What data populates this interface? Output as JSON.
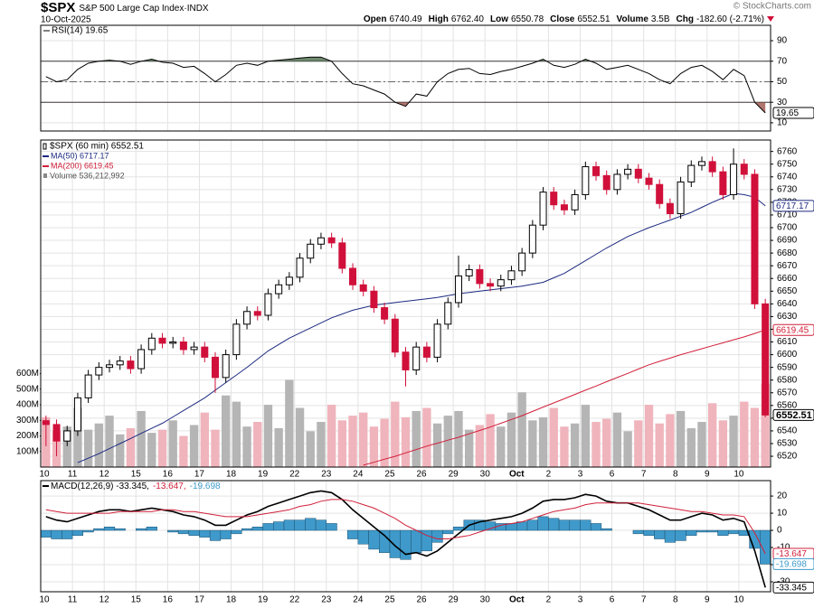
{
  "header": {
    "symbol": "$SPX",
    "name": "S&P 500 Large Cap Index·INDX",
    "date": "10-Oct-2025",
    "watermark": "© StockCharts.com",
    "stats": [
      {
        "label": "Open",
        "value": "6740.49"
      },
      {
        "label": "High",
        "value": "6762.40"
      },
      {
        "label": "Low",
        "value": "6550.78"
      },
      {
        "label": "Close",
        "value": "6552.51"
      },
      {
        "label": "Volume",
        "value": "3.5B"
      },
      {
        "label": "Chg",
        "value": "-182.60 (-2.71%)"
      }
    ]
  },
  "chart_data": [
    {
      "type": "line",
      "title": "RSI(14) 19.65",
      "color": "#000000",
      "values": [
        55,
        50,
        52,
        62,
        68,
        70,
        71,
        70,
        67,
        70,
        72,
        69,
        68,
        64,
        65,
        58,
        50,
        57,
        66,
        68,
        66,
        70,
        71,
        72,
        73,
        74,
        74,
        70,
        58,
        48,
        46,
        42,
        38,
        30,
        26,
        38,
        36,
        50,
        58,
        62,
        63,
        58,
        57,
        60,
        62,
        65,
        68,
        72,
        66,
        64,
        67,
        72,
        68,
        62,
        64,
        66,
        62,
        58,
        52,
        48,
        58,
        64,
        66,
        60,
        52,
        62,
        56,
        30,
        19.65
      ],
      "ylim": [
        2,
        105
      ],
      "yticks": [
        10,
        30,
        50,
        70,
        90
      ],
      "grid": true,
      "levels": [
        {
          "value": 70,
          "style": "solid"
        },
        {
          "value": 50,
          "style": "dashdot"
        },
        {
          "value": 30,
          "style": "solid"
        }
      ],
      "fills": [
        {
          "level": 0,
          "side": "above",
          "color": "#5f7d5f"
        },
        {
          "level": 2,
          "side": "below",
          "color": "#a9665f"
        }
      ],
      "tags": [
        {
          "value": 19.65,
          "label": "19.65",
          "color": "#000000"
        }
      ]
    },
    {
      "type": "candlestick",
      "name": "$SPX (60 min) 6552.51",
      "up_color": "#000000",
      "down_color": "#d0103a",
      "grid": true,
      "categories": [
        "10",
        null,
        null,
        "11",
        null,
        null,
        "12",
        null,
        null,
        "15",
        null,
        null,
        "16",
        null,
        null,
        "17",
        null,
        null,
        "18",
        null,
        null,
        "19",
        null,
        null,
        "22",
        null,
        null,
        "23",
        null,
        null,
        "24",
        null,
        null,
        "25",
        null,
        null,
        "26",
        null,
        null,
        "29",
        null,
        null,
        "30",
        null,
        null,
        "Oct",
        null,
        null,
        "2",
        null,
        null,
        "3",
        null,
        null,
        "6",
        null,
        null,
        "7",
        null,
        null,
        "8",
        null,
        null,
        "9",
        null,
        null,
        "10",
        null,
        null
      ],
      "open": [
        6548,
        6545,
        6532,
        6540,
        6566,
        6584,
        6590,
        6592,
        6595,
        6589,
        6604,
        6613,
        6609,
        6610,
        6604,
        6606,
        6598,
        6582,
        6600,
        6624,
        6634,
        6631,
        6648,
        6655,
        6661,
        6676,
        6687,
        6692,
        6688,
        6668,
        6655,
        6650,
        6637,
        6628,
        6602,
        6588,
        6606,
        6598,
        6624,
        6641,
        6662,
        6667,
        6656,
        6654,
        6659,
        6666,
        6680,
        6702,
        6728,
        6718,
        6714,
        6726,
        6748,
        6741,
        6730,
        6742,
        6746,
        6739,
        6734,
        6719,
        6711,
        6736,
        6749,
        6752,
        6744,
        6726,
        6750,
        6742,
        6640
      ],
      "high": [
        6552,
        6549,
        6544,
        6570,
        6588,
        6594,
        6596,
        6599,
        6599,
        6608,
        6617,
        6617,
        6614,
        6614,
        6610,
        6610,
        6602,
        6604,
        6628,
        6638,
        6638,
        6652,
        6659,
        6665,
        6680,
        6691,
        6696,
        6696,
        6692,
        6672,
        6659,
        6654,
        6641,
        6632,
        6606,
        6610,
        6610,
        6628,
        6645,
        6678,
        6671,
        6671,
        6660,
        6663,
        6670,
        6684,
        6706,
        6732,
        6732,
        6722,
        6730,
        6752,
        6752,
        6745,
        6746,
        6750,
        6750,
        6743,
        6738,
        6723,
        6740,
        6753,
        6756,
        6756,
        6748,
        6762.4,
        6754,
        6746,
        6644
      ],
      "low": [
        6528,
        6520,
        6528,
        6536,
        6562,
        6580,
        6586,
        6588,
        6585,
        6585,
        6600,
        6605,
        6605,
        6600,
        6600,
        6594,
        6570,
        6578,
        6596,
        6620,
        6627,
        6627,
        6644,
        6651,
        6657,
        6672,
        6683,
        6684,
        6664,
        6651,
        6646,
        6633,
        6624,
        6598,
        6575,
        6584,
        6594,
        6594,
        6620,
        6637,
        6658,
        6652,
        6650,
        6650,
        6655,
        6662,
        6676,
        6698,
        6714,
        6710,
        6710,
        6722,
        6737,
        6726,
        6726,
        6738,
        6735,
        6730,
        6715,
        6707,
        6707,
        6732,
        6745,
        6740,
        6722,
        6722,
        6738,
        6636,
        6550.78
      ],
      "close": [
        6545,
        6532,
        6540,
        6566,
        6584,
        6590,
        6592,
        6595,
        6589,
        6604,
        6613,
        6609,
        6610,
        6604,
        6606,
        6598,
        6582,
        6600,
        6624,
        6634,
        6631,
        6648,
        6655,
        6661,
        6676,
        6687,
        6692,
        6688,
        6668,
        6655,
        6650,
        6637,
        6628,
        6602,
        6588,
        6606,
        6598,
        6624,
        6641,
        6662,
        6667,
        6656,
        6654,
        6659,
        6666,
        6680,
        6702,
        6728,
        6718,
        6714,
        6726,
        6748,
        6741,
        6730,
        6742,
        6746,
        6739,
        6734,
        6719,
        6711,
        6736,
        6749,
        6752,
        6744,
        6726,
        6750,
        6742,
        6640,
        6552.51
      ],
      "series": [
        {
          "name": "MA(50) 6717.17",
          "color": "#1c2a80",
          "values": [
            null,
            null,
            null,
            6515,
            6518.5,
            6522,
            6526,
            6530,
            6534,
            6538,
            6542,
            6546,
            6551,
            6556,
            6561,
            6566,
            6572,
            6578,
            6584,
            6590,
            6596.5,
            6603,
            6608,
            6613,
            6617,
            6621,
            6625,
            6629,
            6632,
            6635,
            6637,
            6639,
            6640,
            6641,
            6642,
            6643,
            6644,
            6645,
            6646.5,
            6648,
            6649,
            6650,
            6651,
            6652,
            6653,
            6654,
            6655.5,
            6657,
            6660.5,
            6664,
            6669,
            6674,
            6679,
            6684,
            6688.5,
            6693,
            6696.5,
            6700,
            6703,
            6706,
            6709,
            6712,
            6716,
            6720,
            6723.5,
            6727,
            6726,
            6724,
            6717.17
          ]
        },
        {
          "name": "MA(200) 6619.45",
          "color": "#d0203a",
          "values": [
            null,
            null,
            null,
            null,
            null,
            null,
            null,
            null,
            null,
            null,
            null,
            null,
            null,
            null,
            null,
            null,
            null,
            null,
            null,
            null,
            null,
            null,
            null,
            null,
            null,
            null,
            null,
            null,
            null,
            null,
            6513,
            6515.3,
            6517.7,
            6520,
            6522.7,
            6525.3,
            6528,
            6530.3,
            6532.7,
            6535,
            6537.7,
            6540.3,
            6543,
            6546,
            6549,
            6552,
            6555.3,
            6558.7,
            6562,
            6565.3,
            6568.7,
            6572,
            6575.3,
            6578.7,
            6582,
            6585.3,
            6588.7,
            6592,
            6594.7,
            6597.3,
            6600,
            6602.3,
            6604.7,
            6607,
            6609.3,
            6611.7,
            6614,
            6616.7,
            6619.45
          ]
        }
      ],
      "volume": {
        "name": "Volume 536,212,992",
        "up_color": "#b5b5b5",
        "down_color": "#f0b4bc",
        "values": [
          320000000,
          230000000,
          260000000,
          380000000,
          240000000,
          280000000,
          330000000,
          210000000,
          250000000,
          360000000,
          220000000,
          240000000,
          300000000,
          200000000,
          270000000,
          350000000,
          240000000,
          460000000,
          420000000,
          260000000,
          290000000,
          400000000,
          250000000,
          560000000,
          380000000,
          230000000,
          290000000,
          400000000,
          300000000,
          330000000,
          350000000,
          260000000,
          310000000,
          420000000,
          320000000,
          360000000,
          380000000,
          280000000,
          330000000,
          360000000,
          240000000,
          270000000,
          340000000,
          260000000,
          350000000,
          480000000,
          300000000,
          320000000,
          380000000,
          260000000,
          280000000,
          400000000,
          290000000,
          310000000,
          350000000,
          230000000,
          300000000,
          400000000,
          280000000,
          340000000,
          360000000,
          250000000,
          290000000,
          410000000,
          300000000,
          330000000,
          420000000,
          380000000,
          536212992
        ],
        "ylim": [
          0,
          2100000000
        ],
        "yticks": [
          {
            "value": 100000000,
            "label": "100M"
          },
          {
            "value": 200000000,
            "label": "200M"
          },
          {
            "value": 300000000,
            "label": "300M"
          },
          {
            "value": 400000000,
            "label": "400M"
          },
          {
            "value": 500000000,
            "label": "500M"
          },
          {
            "value": 600000000,
            "label": "600M"
          }
        ]
      },
      "ylim": [
        6511.5,
        6769
      ],
      "yticks": [
        6520,
        6530,
        6540,
        6550,
        6560,
        6570,
        6580,
        6590,
        6600,
        6610,
        6620,
        6630,
        6640,
        6650,
        6660,
        6670,
        6680,
        6690,
        6700,
        6710,
        6720,
        6730,
        6740,
        6750,
        6760
      ],
      "tags": [
        {
          "value": 6717.17,
          "label": "6717.17",
          "color": "#1c2a80"
        },
        {
          "value": 6619.45,
          "label": "6619.45",
          "color": "#d0203a"
        },
        {
          "value": 6552.51,
          "label": "6552.51",
          "color": "#000000"
        }
      ]
    },
    {
      "type": "macd",
      "grid": true,
      "categories": [
        "10",
        null,
        null,
        "11",
        null,
        null,
        "12",
        null,
        null,
        "15",
        null,
        null,
        "16",
        null,
        null,
        "17",
        null,
        null,
        "18",
        null,
        null,
        "19",
        null,
        null,
        "22",
        null,
        null,
        "23",
        null,
        null,
        "24",
        null,
        null,
        "25",
        null,
        null,
        "26",
        null,
        null,
        "29",
        null,
        null,
        "30",
        null,
        null,
        "Oct",
        null,
        null,
        "2",
        null,
        null,
        "3",
        null,
        null,
        "6",
        null,
        null,
        "7",
        null,
        null,
        "8",
        null,
        null,
        "9",
        null,
        null,
        "10",
        null,
        null
      ],
      "series": [
        {
          "name": "MACD(12,26,9) -33.345,",
          "color": "#000000",
          "kind": "line",
          "values": [
            8,
            6,
            5,
            7,
            9,
            11,
            12,
            12,
            11,
            12,
            13,
            12,
            11,
            9,
            8,
            6,
            3,
            3,
            6,
            9,
            11,
            14,
            16,
            18,
            20,
            22,
            23,
            22,
            18,
            12,
            7,
            2,
            -3,
            -9,
            -14,
            -13,
            -15,
            -12,
            -7,
            -2,
            3,
            5,
            6,
            7,
            8,
            10,
            13,
            17,
            18,
            18,
            19,
            21,
            20,
            17,
            16,
            16,
            14,
            12,
            9,
            6,
            6,
            8,
            10,
            9,
            6,
            7,
            5,
            -12,
            -33.345
          ]
        },
        {
          "name": "-13.647,",
          "color": "#d0203a",
          "kind": "line",
          "values": [
            12,
            11,
            10,
            10,
            10,
            10,
            10,
            11,
            11,
            11,
            11,
            12,
            12,
            11,
            11,
            10,
            9,
            8,
            8,
            8,
            9,
            10,
            11,
            12,
            14,
            15,
            17,
            18,
            18,
            17,
            15,
            13,
            10,
            7,
            3,
            0,
            -3,
            -5,
            -5,
            -4,
            -3,
            -1,
            1,
            3,
            4,
            5,
            7,
            9,
            11,
            12,
            13,
            15,
            16,
            16,
            16,
            16,
            16,
            15,
            14,
            13,
            12,
            11,
            11,
            10,
            9,
            9,
            8,
            -1.5,
            -13.647
          ]
        },
        {
          "name": "-19.698",
          "color": "#3f9acb",
          "kind": "histogram",
          "values": [
            -4,
            -5,
            -5,
            -3,
            -1,
            1,
            2,
            1,
            0,
            1,
            2,
            0,
            -1,
            -2,
            -3,
            -4,
            -6,
            -5,
            -2,
            1,
            2,
            4,
            5,
            6,
            6,
            7,
            6,
            4,
            0,
            -5,
            -8,
            -11,
            -13,
            -16,
            -17,
            -13,
            -12,
            -7,
            -2,
            2,
            6,
            6,
            5,
            4,
            4,
            5,
            6,
            8,
            7,
            6,
            6,
            6,
            4,
            1,
            0,
            0,
            -2,
            -3,
            -5,
            -7,
            -6,
            -3,
            -1,
            -1,
            -3,
            -2,
            -3,
            -10.5,
            -19.698
          ]
        }
      ],
      "ylim": [
        -35.8,
        29
      ],
      "yticks": [
        20,
        10,
        0,
        -10,
        -20,
        -30
      ],
      "tags": [
        {
          "value": -13.647,
          "label": "-13.647",
          "color": "#d0203a"
        },
        {
          "value": -19.698,
          "label": "-19.698",
          "color": "#3f9acb"
        },
        {
          "value": -33.345,
          "label": "-33.345",
          "color": "#000000"
        }
      ]
    }
  ]
}
